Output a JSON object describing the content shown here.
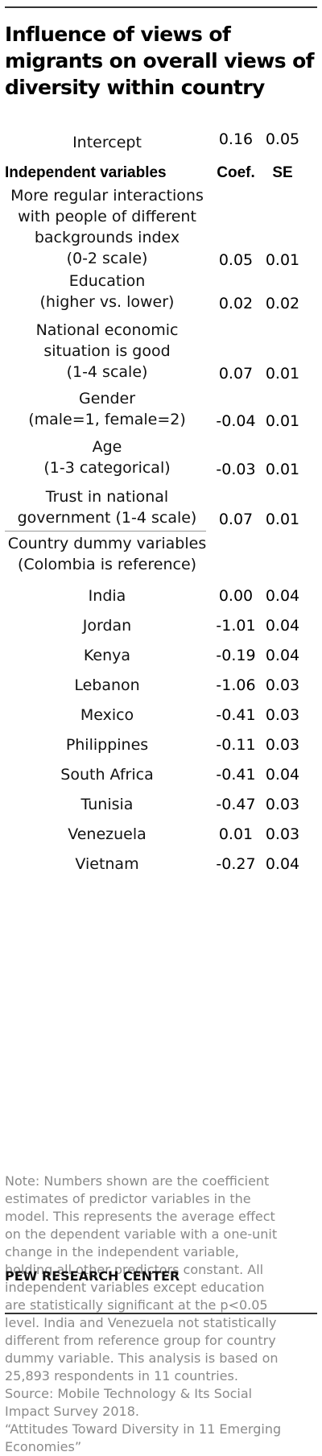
{
  "title": "Influence of views of migrants on overall views of diversity within country",
  "chart_data": {
    "type": "table",
    "title": "Influence of views of migrants on overall views of diversity within country",
    "intercept": {
      "label": "Intercept",
      "coef": "0.16",
      "se": "0.05"
    },
    "headers": {
      "variables": "Independent variables",
      "coef": "Coef.",
      "se": "SE"
    },
    "rows": [
      {
        "label": [
          "More regular interactions",
          "with people of different",
          "backgrounds index",
          "(0-2 scale)"
        ],
        "coef": "0.05",
        "se": "0.01"
      },
      {
        "label": [
          "Education",
          "(higher vs. lower)"
        ],
        "coef": "0.02",
        "se": "0.02"
      },
      {
        "label": [
          "National economic",
          "situation is good",
          "(1-4 scale)"
        ],
        "coef": "0.07",
        "se": "0.01"
      },
      {
        "label": [
          "Gender",
          "(male=1, female=2)"
        ],
        "coef": "-0.04",
        "se": "0.01"
      },
      {
        "label": [
          "Age",
          "(1-3 categorical)"
        ],
        "coef": "-0.03",
        "se": "0.01"
      },
      {
        "label": [
          "Trust in national",
          "government (1-4 scale)"
        ],
        "coef": "0.07",
        "se": "0.01"
      }
    ],
    "country_header": [
      "Country dummy variables",
      "(Colombia is reference)"
    ],
    "countries": [
      {
        "label": "India",
        "coef": "0.00",
        "se": "0.04"
      },
      {
        "label": "Jordan",
        "coef": "-1.01",
        "se": "0.04"
      },
      {
        "label": "Kenya",
        "coef": "-0.19",
        "se": "0.04"
      },
      {
        "label": "Lebanon",
        "coef": "-1.06",
        "se": "0.03"
      },
      {
        "label": "Mexico",
        "coef": "-0.41",
        "se": "0.03"
      },
      {
        "label": "Philippines",
        "coef": "-0.11",
        "se": "0.03"
      },
      {
        "label": "South Africa",
        "coef": "-0.41",
        "se": "0.04"
      },
      {
        "label": "Tunisia",
        "coef": "-0.47",
        "se": "0.03"
      },
      {
        "label": "Venezuela",
        "coef": "0.01",
        "se": "0.03"
      },
      {
        "label": "Vietnam",
        "coef": "-0.27",
        "se": "0.04"
      }
    ]
  },
  "note": [
    "Note: Numbers shown are the coefficient",
    "estimates of predictor variables in the",
    "model. This represents the average effect",
    "on the dependent variable with a one-unit",
    "change in the independent variable,",
    "holding all other predictors constant. All",
    "independent variables except education",
    "are statistically significant at the p<0.05",
    "level. India and Venezuela not statistically",
    "different from reference group for country",
    "dummy variable. This analysis is based on",
    "25,893 respondents in 11 countries.",
    "Source: Mobile Technology & Its Social",
    "Impact Survey 2018.",
    "“Attitudes Toward Diversity in 11 Emerging",
    "Economies”"
  ],
  "brand": "PEW RESEARCH CENTER"
}
